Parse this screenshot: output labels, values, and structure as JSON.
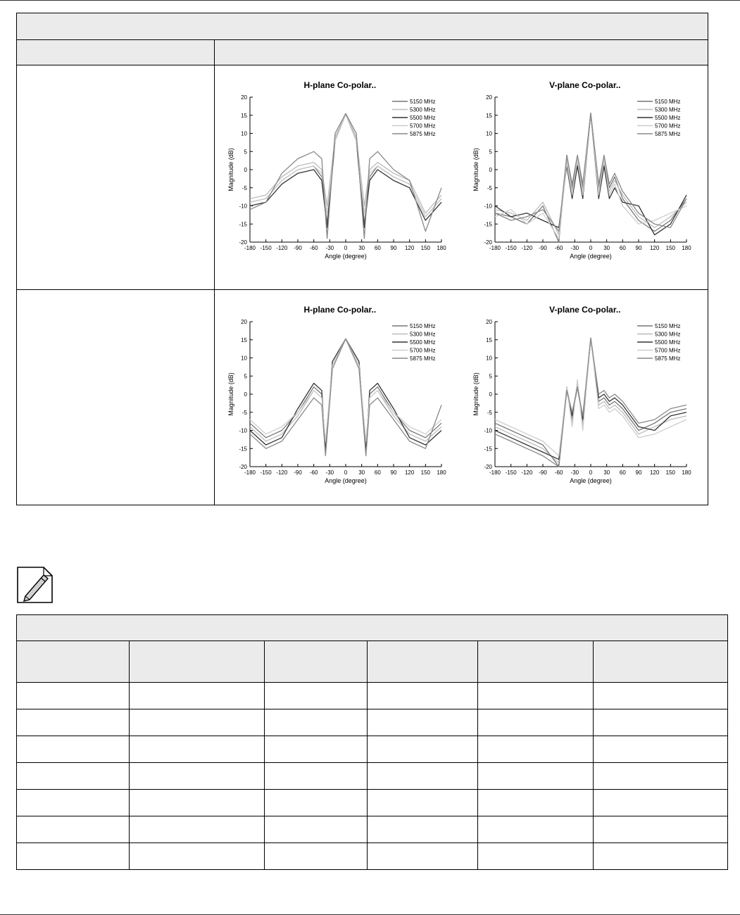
{
  "charts": [
    {
      "title": "H-plane Co-polar..",
      "xlabel": "Angle (degree)",
      "ylabel": "Magnitude (dB)",
      "xticks": [
        "-180",
        "-150",
        "-120",
        "-90",
        "-60",
        "-30",
        "0",
        "30",
        "60",
        "90",
        "120",
        "150",
        "180"
      ],
      "yticks": [
        "20",
        "15",
        "10",
        "5",
        "0",
        "-5",
        "-10",
        "-15",
        "-20"
      ],
      "legend": [
        "5150 MHz",
        "5300 MHz",
        "5500 MHz",
        "5700 MHz",
        "5875 MHz"
      ]
    },
    {
      "title": "V-plane Co-polar..",
      "xlabel": "Angle (degree)",
      "ylabel": "Magnitude (dB)",
      "xticks": [
        "-180",
        "-150",
        "-120",
        "-90",
        "-60",
        "-30",
        "0",
        "30",
        "60",
        "90",
        "120",
        "150",
        "180"
      ],
      "yticks": [
        "20",
        "15",
        "10",
        "5",
        "0",
        "-5",
        "-10",
        "-15",
        "-20"
      ],
      "legend": [
        "5150 MHz",
        "5300 MHz",
        "5500 MHz",
        "5700 MHz",
        "5875 MHz"
      ]
    },
    {
      "title": "H-plane Co-polar..",
      "xlabel": "Angle (degree)",
      "ylabel": "Magnitude (dB)",
      "xticks": [
        "-180",
        "-150",
        "-120",
        "-90",
        "-60",
        "-30",
        "0",
        "30",
        "60",
        "90",
        "120",
        "150",
        "180"
      ],
      "yticks": [
        "20",
        "15",
        "10",
        "5",
        "0",
        "-5",
        "-10",
        "-15",
        "-20"
      ],
      "legend": [
        "5150 MHz",
        "5300 MHz",
        "5500 MHz",
        "5700 MHz",
        "5875 MHz"
      ]
    },
    {
      "title": "V-plane Co-polar..",
      "xlabel": "Angle (degree)",
      "ylabel": "Magnitude (dB)",
      "xticks": [
        "-180",
        "-150",
        "-120",
        "-90",
        "-60",
        "-30",
        "0",
        "30",
        "60",
        "90",
        "120",
        "150",
        "180"
      ],
      "yticks": [
        "20",
        "15",
        "10",
        "5",
        "0",
        "-5",
        "-10",
        "-15",
        "-20"
      ],
      "legend": [
        "5150 MHz",
        "5300 MHz",
        "5500 MHz",
        "5700 MHz",
        "5875 MHz"
      ]
    }
  ],
  "chart_data": [
    {
      "type": "line",
      "title": "H-plane Co-polar..",
      "xlabel": "Angle (degree)",
      "ylabel": "Magnitude (dB)",
      "xlim": [
        -180,
        180
      ],
      "ylim": [
        -20,
        20
      ],
      "legend_position": "top-right",
      "x": [
        -180,
        -150,
        -120,
        -90,
        -60,
        -45,
        -35,
        -20,
        0,
        20,
        35,
        45,
        60,
        90,
        120,
        150,
        180
      ],
      "series": [
        {
          "name": "5150 MHz",
          "color": "#777777",
          "values": [
            -9,
            -8,
            -3,
            0,
            1,
            -2,
            -15,
            8,
            15.3,
            8,
            -15,
            -2,
            1,
            -2,
            -4,
            -13,
            -8
          ]
        },
        {
          "name": "5300 MHz",
          "color": "#bbbbbb",
          "values": [
            -8,
            -7,
            -2,
            1,
            2,
            0,
            -10,
            9,
            15.3,
            9,
            -10,
            0,
            2,
            -1,
            -3,
            -12,
            -7
          ]
        },
        {
          "name": "5500 MHz",
          "color": "#333333",
          "values": [
            -10,
            -9,
            -4,
            -1,
            0,
            -3,
            -16,
            8,
            15.4,
            8,
            -16,
            -3,
            0,
            -3,
            -5,
            -14,
            -9
          ]
        },
        {
          "name": "5700 MHz",
          "color": "#cccccc",
          "values": [
            -9,
            -8,
            -3,
            0,
            1,
            -1,
            -12,
            8,
            15.4,
            8,
            -12,
            -1,
            1,
            -2,
            -4,
            -13,
            -8
          ]
        },
        {
          "name": "5875 MHz",
          "color": "#888888",
          "values": [
            -11,
            -9,
            -1,
            3,
            5,
            3,
            -19,
            10,
            15.5,
            10,
            -19,
            3,
            5,
            0,
            -3,
            -17,
            -5
          ]
        }
      ]
    },
    {
      "type": "line",
      "title": "V-plane Co-polar..",
      "xlabel": "Angle (degree)",
      "ylabel": "Magnitude (dB)",
      "xlim": [
        -180,
        180
      ],
      "ylim": [
        -20,
        20
      ],
      "legend_position": "top-right",
      "x": [
        -180,
        -150,
        -120,
        -90,
        -60,
        -45,
        -35,
        -25,
        -15,
        0,
        15,
        25,
        35,
        45,
        60,
        90,
        120,
        150,
        180
      ],
      "series": [
        {
          "name": "5150 MHz",
          "color": "#777777",
          "values": [
            -12,
            -13,
            -15,
            -10,
            -20,
            4,
            -5,
            3,
            -5,
            15.5,
            -5,
            3,
            -5,
            -2,
            -8,
            -14,
            -17,
            -14,
            -8
          ]
        },
        {
          "name": "5300 MHz",
          "color": "#bbbbbb",
          "values": [
            -11,
            -12,
            -14,
            -9,
            -18,
            3,
            -6,
            2,
            -6,
            15.5,
            -6,
            2,
            -6,
            -3,
            -7,
            -13,
            -16,
            -13,
            -9
          ]
        },
        {
          "name": "5500 MHz",
          "color": "#333333",
          "values": [
            -10,
            -13,
            -12,
            -14,
            -16,
            1,
            -8,
            1,
            -8,
            15.5,
            -8,
            1,
            -8,
            -5,
            -9,
            -10,
            -18,
            -15,
            -7
          ]
        },
        {
          "name": "5700 MHz",
          "color": "#cccccc",
          "values": [
            -13,
            -11,
            -15,
            -12,
            -19,
            2,
            -7,
            3,
            -7,
            15.6,
            -7,
            3,
            -7,
            -4,
            -10,
            -15,
            -14,
            -12,
            -10
          ]
        },
        {
          "name": "5875 MHz",
          "color": "#888888",
          "values": [
            -12,
            -14,
            -13,
            -11,
            -17,
            4,
            -4,
            4,
            -4,
            15.6,
            -4,
            4,
            -4,
            -1,
            -6,
            -12,
            -15,
            -16,
            -8
          ]
        }
      ]
    },
    {
      "type": "line",
      "title": "H-plane Co-polar..",
      "xlabel": "Angle (degree)",
      "ylabel": "Magnitude (dB)",
      "xlim": [
        -180,
        180
      ],
      "ylim": [
        -20,
        20
      ],
      "legend_position": "top-right",
      "x": [
        -180,
        -150,
        -120,
        -90,
        -60,
        -45,
        -38,
        -25,
        0,
        25,
        38,
        45,
        60,
        90,
        120,
        150,
        180
      ],
      "series": [
        {
          "name": "5150 MHz",
          "color": "#777777",
          "values": [
            -8,
            -12,
            -10,
            -5,
            2,
            0,
            -15,
            8,
            15.2,
            8,
            -15,
            0,
            2,
            -5,
            -10,
            -12,
            -8
          ]
        },
        {
          "name": "5300 MHz",
          "color": "#bbbbbb",
          "values": [
            -9,
            -13,
            -11,
            -6,
            1,
            -1,
            -14,
            8,
            15.2,
            8,
            -14,
            -1,
            1,
            -6,
            -11,
            -13,
            -9
          ]
        },
        {
          "name": "5500 MHz",
          "color": "#333333",
          "values": [
            -10,
            -14,
            -12,
            -4,
            3,
            1,
            -16,
            9,
            15.3,
            9,
            -16,
            1,
            3,
            -4,
            -12,
            -14,
            -10
          ]
        },
        {
          "name": "5700 MHz",
          "color": "#cccccc",
          "values": [
            -7,
            -11,
            -9,
            -5,
            1,
            -1,
            -13,
            8,
            15.3,
            8,
            -13,
            -1,
            1,
            -5,
            -9,
            -11,
            -7
          ]
        },
        {
          "name": "5875 MHz",
          "color": "#888888",
          "values": [
            -11,
            -15,
            -13,
            -7,
            -1,
            -3,
            -17,
            7,
            15.3,
            7,
            -17,
            -3,
            -1,
            -7,
            -13,
            -15,
            -3
          ]
        }
      ]
    },
    {
      "type": "line",
      "title": "V-plane Co-polar..",
      "xlabel": "Angle (degree)",
      "ylabel": "Magnitude (dB)",
      "xlim": [
        -180,
        180
      ],
      "ylim": [
        -20,
        20
      ],
      "legend_position": "top-right",
      "x": [
        -180,
        -150,
        -120,
        -90,
        -60,
        -45,
        -35,
        -25,
        -15,
        0,
        15,
        25,
        35,
        45,
        60,
        90,
        120,
        150,
        180
      ],
      "series": [
        {
          "name": "5150 MHz",
          "color": "#777777",
          "values": [
            -8,
            -10,
            -12,
            -14,
            -20,
            2,
            -7,
            3,
            -8,
            15.3,
            -2,
            -1,
            -3,
            -2,
            -4,
            -10,
            -8,
            -5,
            -4
          ]
        },
        {
          "name": "5300 MHz",
          "color": "#bbbbbb",
          "values": [
            -9,
            -11,
            -13,
            -15,
            -19,
            2,
            -8,
            3,
            -9,
            15.3,
            -3,
            -2,
            -4,
            -3,
            -5,
            -11,
            -9,
            -7,
            -6
          ]
        },
        {
          "name": "5500 MHz",
          "color": "#333333",
          "values": [
            -10,
            -12,
            -14,
            -16,
            -18,
            1,
            -6,
            2,
            -7,
            15.4,
            -1,
            0,
            -2,
            -1,
            -3,
            -9,
            -10,
            -6,
            -5
          ]
        },
        {
          "name": "5700 MHz",
          "color": "#cccccc",
          "values": [
            -7,
            -9,
            -11,
            -13,
            -17,
            2,
            -9,
            4,
            -10,
            15.4,
            -4,
            -3,
            -5,
            -4,
            -6,
            -12,
            -11,
            -9,
            -7
          ]
        },
        {
          "name": "5875 MHz",
          "color": "#888888",
          "values": [
            -11,
            -13,
            -15,
            -17,
            -20,
            1,
            -5,
            2,
            -6,
            15.5,
            0,
            1,
            -1,
            0,
            -2,
            -8,
            -7,
            -4,
            -3
          ]
        }
      ]
    }
  ],
  "colors": {
    "header_bg": "#ebebeb",
    "border": "#000000"
  },
  "note_icon": "pencil-note-icon"
}
